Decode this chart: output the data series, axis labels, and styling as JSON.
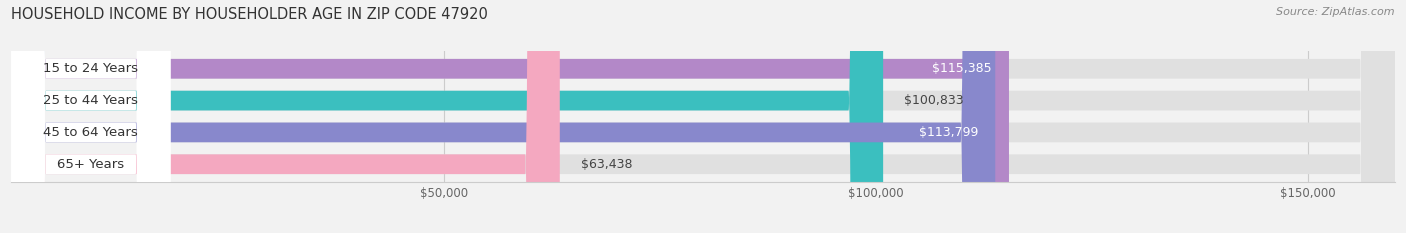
{
  "title": "HOUSEHOLD INCOME BY HOUSEHOLDER AGE IN ZIP CODE 47920",
  "source": "Source: ZipAtlas.com",
  "categories": [
    "15 to 24 Years",
    "25 to 44 Years",
    "45 to 64 Years",
    "65+ Years"
  ],
  "values": [
    115385,
    100833,
    113799,
    63438
  ],
  "bar_colors": [
    "#b388c8",
    "#3bbfbf",
    "#8888cc",
    "#f4a8c0"
  ],
  "value_inside": [
    true,
    false,
    true,
    false
  ],
  "value_label_colors": [
    "#ffffff",
    "#444444",
    "#ffffff",
    "#444444"
  ],
  "xlim": [
    0,
    160000
  ],
  "xticks": [
    50000,
    100000,
    150000
  ],
  "xtick_labels": [
    "$50,000",
    "$100,000",
    "$150,000"
  ],
  "bar_height": 0.62,
  "background_color": "#f2f2f2",
  "bar_bg_color": "#e0e0e0",
  "label_font_size": 9.5,
  "title_font_size": 10.5,
  "value_font_size": 9,
  "source_font_size": 8
}
